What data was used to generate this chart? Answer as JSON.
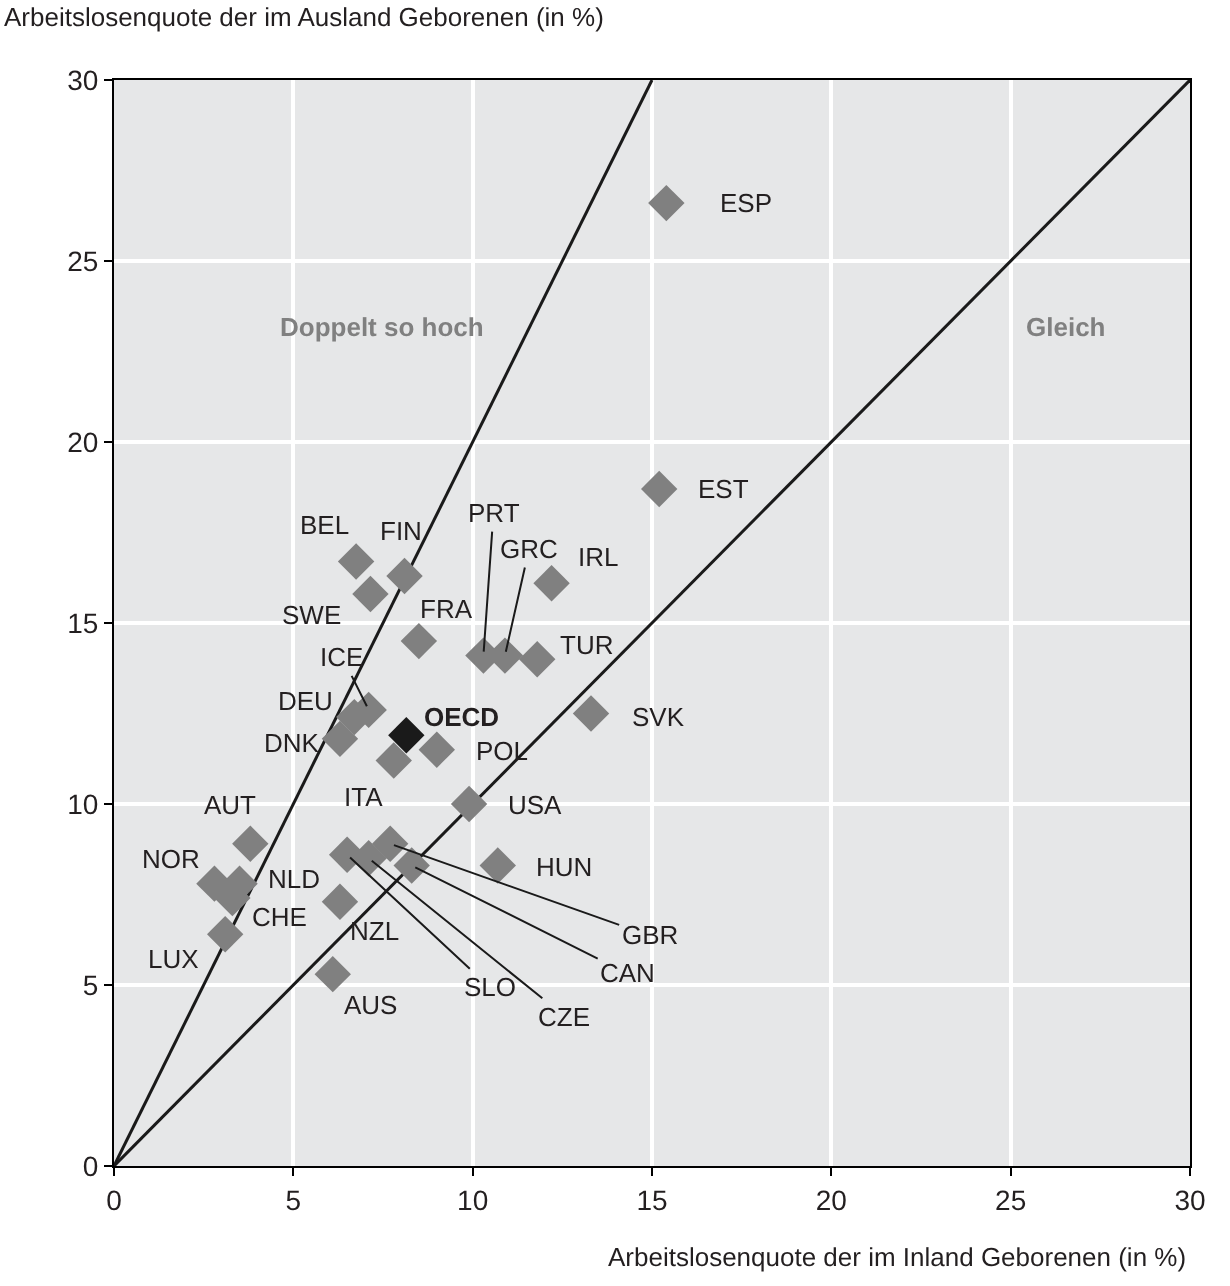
{
  "chart_data": {
    "type": "scatter",
    "xlabel": "Arbeitslosenquote der im Inland Geborenen (in %)",
    "ylabel": "Arbeitslosenquote der im Ausland Geborenen (in %)",
    "xlim": [
      0,
      30
    ],
    "ylim": [
      0,
      30
    ],
    "xticks": [
      0,
      5,
      10,
      15,
      20,
      25,
      30
    ],
    "yticks": [
      0,
      5,
      10,
      15,
      20,
      25,
      30
    ],
    "grid": true,
    "series": [
      {
        "type": "line",
        "marker": "none",
        "color": "#1a1a1a",
        "x": [
          0,
          15
        ],
        "values": [
          0,
          30
        ]
      },
      {
        "type": "line",
        "marker": "none",
        "color": "#1a1a1a",
        "x": [
          0,
          30
        ],
        "values": [
          0,
          30
        ]
      },
      {
        "marker": "diamond",
        "x": [
          15.4,
          15.2,
          6.75,
          8.1,
          7.15,
          8.5,
          10.3,
          10.9,
          12.2,
          11.8,
          7.1,
          6.7,
          6.3,
          8.15,
          7.8,
          9.0,
          13.3,
          9.9,
          10.7,
          3.8,
          2.8,
          3.5,
          3.3,
          3.1,
          6.3,
          6.1,
          7.7,
          8.3,
          6.5,
          7.1
        ],
        "values": [
          26.6,
          18.7,
          16.7,
          16.3,
          15.8,
          14.5,
          14.1,
          14.1,
          16.1,
          14.0,
          12.6,
          12.4,
          11.8,
          11.9,
          11.2,
          11.5,
          12.5,
          10.0,
          8.3,
          8.9,
          7.8,
          7.8,
          7.4,
          6.4,
          7.3,
          5.3,
          8.9,
          8.3,
          8.6,
          8.5
        ],
        "colors": [
          "#808080",
          "#808080",
          "#808080",
          "#808080",
          "#808080",
          "#808080",
          "#808080",
          "#808080",
          "#808080",
          "#808080",
          "#808080",
          "#808080",
          "#808080",
          "#1a1a1a",
          "#808080",
          "#808080",
          "#808080",
          "#808080",
          "#808080",
          "#808080",
          "#808080",
          "#808080",
          "#808080",
          "#808080",
          "#808080",
          "#808080",
          "#808080",
          "#808080",
          "#808080",
          "#808080"
        ]
      }
    ],
    "annotations": [
      {
        "text": "ESP",
        "x": 15.4,
        "y": 26.6
      },
      {
        "text": "EST",
        "x": 15.2,
        "y": 18.7
      },
      {
        "text": "BEL",
        "x": 6.75,
        "y": 16.7
      },
      {
        "text": "FIN",
        "x": 8.1,
        "y": 16.3
      },
      {
        "text": "SWE",
        "x": 7.15,
        "y": 15.8
      },
      {
        "text": "FRA",
        "x": 8.5,
        "y": 14.5
      },
      {
        "text": "PRT",
        "x": 10.3,
        "y": 14.1
      },
      {
        "text": "GRC",
        "x": 10.9,
        "y": 14.1
      },
      {
        "text": "IRL",
        "x": 12.2,
        "y": 16.1
      },
      {
        "text": "TUR",
        "x": 11.8,
        "y": 14.0
      },
      {
        "text": "ICE",
        "x": 7.1,
        "y": 12.6
      },
      {
        "text": "DEU",
        "x": 6.7,
        "y": 12.4
      },
      {
        "text": "DNK",
        "x": 6.3,
        "y": 11.8
      },
      {
        "text": "OECD",
        "x": 8.15,
        "y": 11.9
      },
      {
        "text": "ITA",
        "x": 7.8,
        "y": 11.2
      },
      {
        "text": "POL",
        "x": 9.0,
        "y": 11.5
      },
      {
        "text": "SVK",
        "x": 13.3,
        "y": 12.5
      },
      {
        "text": "USA",
        "x": 9.9,
        "y": 10.0
      },
      {
        "text": "HUN",
        "x": 10.7,
        "y": 8.3
      },
      {
        "text": "AUT",
        "x": 3.8,
        "y": 8.9
      },
      {
        "text": "NOR",
        "x": 2.8,
        "y": 7.8
      },
      {
        "text": "NLD",
        "x": 3.5,
        "y": 7.8
      },
      {
        "text": "CHE",
        "x": 3.3,
        "y": 7.4
      },
      {
        "text": "LUX",
        "x": 3.1,
        "y": 6.4
      },
      {
        "text": "NZL",
        "x": 6.3,
        "y": 7.3
      },
      {
        "text": "AUS",
        "x": 6.1,
        "y": 5.3
      },
      {
        "text": "GBR",
        "x": 7.7,
        "y": 8.9
      },
      {
        "text": "CAN",
        "x": 8.3,
        "y": 8.3
      },
      {
        "text": "SLO",
        "x": 6.5,
        "y": 8.6
      },
      {
        "text": "CZE",
        "x": 7.1,
        "y": 8.5
      },
      "Doppelt so hoch",
      "Gleich"
    ]
  }
}
